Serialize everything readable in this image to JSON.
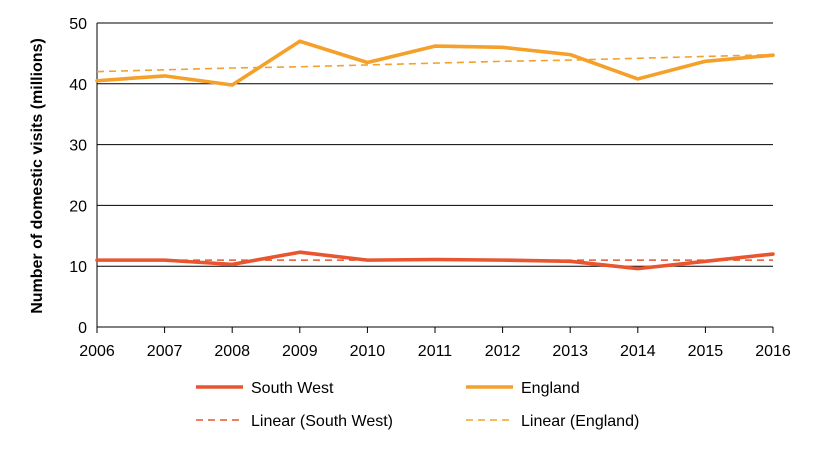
{
  "chart_data": {
    "type": "line",
    "ylabel": "Number of domestic visits (millions)",
    "xlabel": "",
    "title": "",
    "x": [
      2006,
      2007,
      2008,
      2009,
      2010,
      2011,
      2012,
      2013,
      2014,
      2015,
      2016
    ],
    "ylim": [
      0,
      50
    ],
    "yticks": [
      0,
      10,
      20,
      30,
      40,
      50
    ],
    "grid": "horizontal",
    "legend_position": "bottom",
    "series": [
      {
        "name": "South West",
        "style": "solid",
        "color": "#e8552f",
        "values": [
          11.0,
          11.0,
          10.3,
          12.3,
          11.0,
          11.1,
          11.0,
          10.8,
          9.6,
          10.8,
          12.0
        ]
      },
      {
        "name": "England",
        "style": "solid",
        "color": "#f5a02a",
        "values": [
          40.5,
          41.3,
          39.8,
          47.0,
          43.5,
          46.2,
          46.0,
          44.8,
          40.8,
          43.7,
          44.7
        ]
      },
      {
        "name": "Linear (South West)",
        "style": "dashed",
        "color": "#e8552f",
        "values": [
          11.0,
          11.0,
          11.0,
          11.0,
          11.0,
          11.0,
          11.0,
          11.0,
          11.0,
          11.0,
          11.0
        ]
      },
      {
        "name": "Linear (England)",
        "style": "dashed",
        "color": "#f5a02a",
        "values": [
          42.0,
          42.3,
          42.6,
          42.8,
          43.1,
          43.4,
          43.7,
          43.9,
          44.2,
          44.5,
          44.8
        ]
      }
    ]
  }
}
